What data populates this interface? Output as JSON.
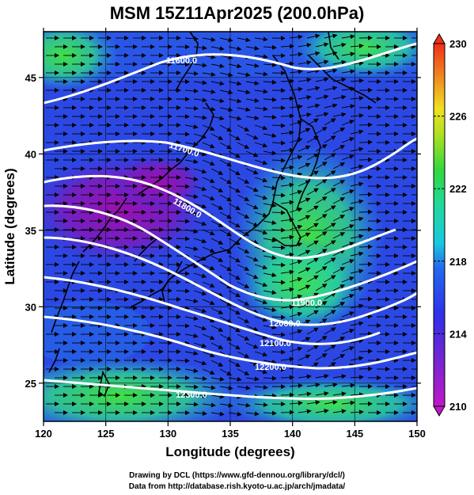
{
  "title": "MSM 15Z11Apr2025 (200.0hPa)",
  "xlabel": "Longitude (degrees)",
  "ylabel": "Latitude  (degrees)",
  "xticks": [
    "120",
    "125",
    "130",
    "135",
    "140",
    "145",
    "150"
  ],
  "yticks": [
    "25",
    "30",
    "35",
    "40",
    "45"
  ],
  "colorbar": {
    "min": 210,
    "max": 230,
    "labels": [
      "230",
      "226",
      "222",
      "218",
      "214",
      "210"
    ]
  },
  "contour_labels": [
    "11600.0",
    "11700.0",
    "11800.0",
    "11900.0",
    "12000.0",
    "12100.0",
    "12200.0",
    "12300.0"
  ],
  "footer": {
    "line1": "Drawing by DCL (https://www.gfd-dennou.org/library/dcl/)",
    "line2": "Data from http://database.rish.kyoto-u.ac.jp/arch/jmadata/"
  },
  "colors": {
    "purple": "#8a1aa8",
    "blue": "#2e3ee6",
    "cyan": "#1fc7d6",
    "green": "#2fd641",
    "contour": "#ffffff"
  }
}
